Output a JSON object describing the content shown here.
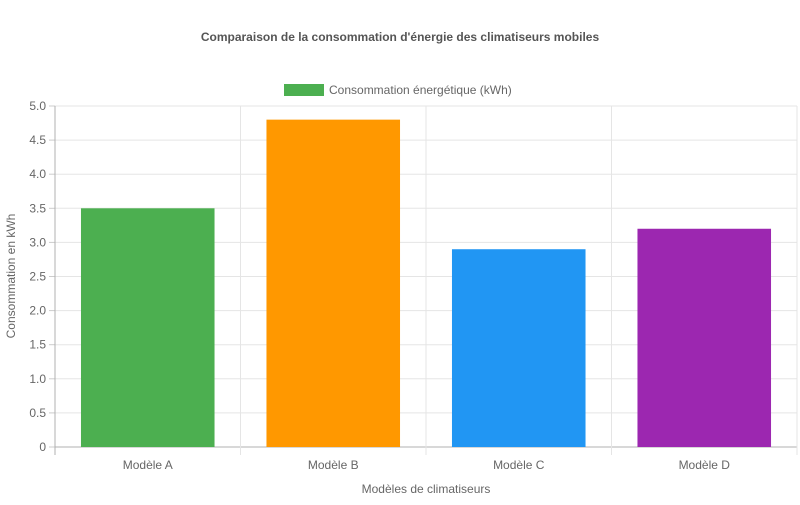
{
  "chart_data": {
    "type": "bar",
    "title": "Comparaison de la consommation d'énergie des climatiseurs mobiles",
    "xlabel": "Modèles de climatiseurs",
    "ylabel": "Consommation en kWh",
    "categories": [
      "Modèle A",
      "Modèle B",
      "Modèle C",
      "Modèle D"
    ],
    "series": [
      {
        "name": "Consommation énergétique (kWh)",
        "values": [
          3.5,
          4.8,
          2.9,
          3.2
        ]
      }
    ],
    "bar_colors": [
      "#4caf50",
      "#ff9800",
      "#2196f3",
      "#9c27b0"
    ],
    "legend_color": "#4caf50",
    "ylim": [
      0,
      5
    ],
    "yticks": [
      "0",
      "0.5",
      "1.0",
      "1.5",
      "2.0",
      "2.5",
      "3.0",
      "3.5",
      "4.0",
      "4.5",
      "5.0"
    ],
    "grid": true,
    "legend_position": "top"
  }
}
